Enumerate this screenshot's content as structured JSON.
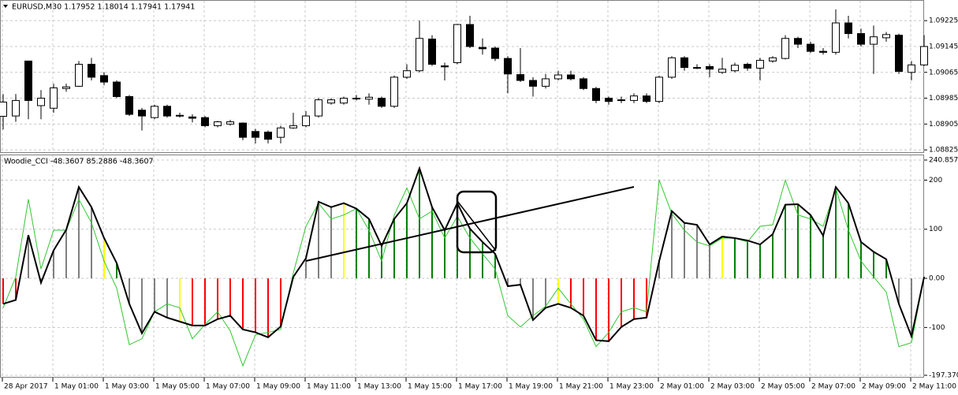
{
  "chart_data": [
    {
      "type": "candlestick",
      "title": "EURUSD,M30  1.17952 1.18014 1.17941 1.17941",
      "up_color": "#ffffff",
      "down_color": "#000000",
      "open": [
        1.08929,
        1.0893,
        1.091,
        1.08962,
        1.08954,
        1.09015,
        1.09022,
        1.0909,
        1.09055,
        1.09035,
        1.0899,
        1.08948,
        1.08925,
        1.0896,
        1.08932,
        1.08927,
        1.08925,
        1.089,
        1.08905,
        1.08908,
        1.08882,
        1.0888,
        1.08864,
        1.08893,
        1.089,
        1.0893,
        1.0897,
        1.0897,
        1.08983,
        1.08982,
        1.08985,
        1.0896,
        1.0905,
        1.0907,
        1.09168,
        1.09085,
        1.09095,
        1.09213,
        1.09142,
        1.0914,
        1.09108,
        1.09058,
        1.0904,
        1.09022,
        1.09045,
        1.09057,
        1.09045,
        1.09015,
        1.08985,
        1.0898,
        1.08978,
        1.08992,
        1.08975,
        1.0905,
        1.0911,
        1.0908,
        1.09083,
        1.09065,
        1.0907,
        1.0909,
        1.09078,
        1.091,
        1.09108,
        1.0917,
        1.09152,
        1.0913,
        1.09127,
        1.09218,
        1.09185,
        1.09152,
        1.09172,
        1.0918,
        1.09065,
        1.09088
      ],
      "high": [
        1.08998,
        1.08998,
        1.091,
        1.0901,
        1.0903,
        1.0903,
        1.091,
        1.0911,
        1.09065,
        1.0904,
        1.08995,
        1.08955,
        1.08965,
        1.08965,
        1.0894,
        1.08935,
        1.0893,
        1.08915,
        1.08918,
        1.0891,
        1.0889,
        1.08885,
        1.089,
        1.0894,
        1.08945,
        1.08985,
        1.08985,
        1.0899,
        1.08995,
        1.09,
        1.0899,
        1.09055,
        1.0909,
        1.09225,
        1.0918,
        1.09095,
        1.09215,
        1.0924,
        1.0917,
        1.09145,
        1.09115,
        1.0914,
        1.0905,
        1.0906,
        1.0907,
        1.0907,
        1.0905,
        1.0902,
        1.0899,
        1.0899,
        1.09,
        1.09,
        1.09055,
        1.09115,
        1.09115,
        1.0909,
        1.0909,
        1.0911,
        1.09095,
        1.09095,
        1.0911,
        1.09115,
        1.0918,
        1.09175,
        1.0916,
        1.0914,
        1.0926,
        1.0924,
        1.092,
        1.0921,
        1.0919,
        1.09185,
        1.091,
        1.0918
      ],
      "low": [
        1.08888,
        1.08912,
        1.0892,
        1.0892,
        1.0894,
        1.09005,
        1.0902,
        1.0904,
        1.09025,
        1.08985,
        1.0893,
        1.08885,
        1.0892,
        1.08925,
        1.08925,
        1.0891,
        1.08895,
        1.08895,
        1.089,
        1.08855,
        1.08845,
        1.08845,
        1.08845,
        1.0889,
        1.08895,
        1.08925,
        1.08965,
        1.08965,
        1.08978,
        1.08965,
        1.08955,
        1.08955,
        1.09045,
        1.09065,
        1.09085,
        1.0904,
        1.0909,
        1.0914,
        1.0912,
        1.091,
        1.09,
        1.09035,
        1.0899,
        1.09015,
        1.0904,
        1.0904,
        1.0901,
        1.0897,
        1.08965,
        1.0897,
        1.0897,
        1.0897,
        1.0897,
        1.09045,
        1.0907,
        1.09075,
        1.0905,
        1.0906,
        1.09065,
        1.0907,
        1.0904,
        1.09095,
        1.09105,
        1.0914,
        1.09125,
        1.0912,
        1.0912,
        1.0917,
        1.09145,
        1.0906,
        1.0916,
        1.0906,
        1.0904,
        1.09085
      ],
      "close": [
        1.08973,
        1.08978,
        1.08978,
        1.08985,
        1.09017,
        1.0902,
        1.0909,
        1.0905,
        1.09035,
        1.0899,
        1.08935,
        1.0893,
        1.0896,
        1.0893,
        1.0893,
        1.08923,
        1.089,
        1.08912,
        1.08912,
        1.08864,
        1.08864,
        1.08858,
        1.08893,
        1.089,
        1.0893,
        1.0898,
        1.0898,
        1.08985,
        1.08985,
        1.08988,
        1.0896,
        1.0905,
        1.0907,
        1.0917,
        1.0909,
        1.09082,
        1.09213,
        1.09145,
        1.09138,
        1.09108,
        1.0906,
        1.0904,
        1.09022,
        1.09045,
        1.09057,
        1.09045,
        1.09015,
        1.08978,
        1.08975,
        1.08978,
        1.08992,
        1.08975,
        1.0905,
        1.0911,
        1.0908,
        1.09078,
        1.09075,
        1.09075,
        1.09087,
        1.09078,
        1.09102,
        1.0911,
        1.0917,
        1.09152,
        1.0913,
        1.09127,
        1.09218,
        1.09185,
        1.09152,
        1.09175,
        1.09182,
        1.09068,
        1.09088,
        1.09145
      ],
      "ylim": [
        1.08818,
        1.09284
      ],
      "yticks": [
        1.09225,
        1.09145,
        1.09065,
        1.08985,
        1.08905,
        1.08825
      ],
      "grid": true
    },
    {
      "type": "woodie_cci",
      "title": "Woodie_CCI -48.3607 85.2886 -48.3607",
      "categories": [
        "28 Apr 2017",
        null,
        null,
        null,
        "1 May 01:00",
        null,
        null,
        null,
        "1 May 03:00",
        null,
        null,
        null,
        "1 May 05:00",
        null,
        null,
        null,
        "1 May 07:00",
        null,
        null,
        null,
        "1 May 09:00",
        null,
        null,
        null,
        "1 May 11:00",
        null,
        null,
        null,
        "1 May 13:00",
        null,
        null,
        null,
        "1 May 15:00",
        null,
        null,
        null,
        "1 May 17:00",
        null,
        null,
        null,
        "1 May 19:00",
        null,
        null,
        null,
        "1 May 21:00",
        null,
        null,
        null,
        "1 May 23:00",
        null,
        null,
        null,
        "2 May 01:00",
        null,
        null,
        null,
        "2 May 03:00",
        null,
        null,
        null,
        "2 May 05:00",
        null,
        null,
        null,
        "2 May 07:00",
        null,
        null,
        null,
        "2 May 09:00",
        null,
        null,
        null,
        "2 May 11:00",
        null
      ],
      "series": [
        {
          "color": "#000000",
          "values": [
            -52,
            -44,
            88,
            -9,
            57,
            99,
            186,
            145,
            82,
            31,
            -52,
            -112,
            -68,
            -80,
            -88,
            -96,
            -96,
            -83,
            -76,
            -104,
            -110,
            -120,
            -98,
            3,
            41,
            156,
            145,
            153,
            142,
            121,
            66,
            121,
            153,
            224,
            145,
            98,
            153,
            101,
            74,
            50,
            -16,
            -13,
            -85,
            -60,
            -52,
            -60,
            -76,
            -126,
            -128,
            -99,
            -83,
            -80,
            35,
            137,
            113,
            109,
            69,
            85,
            82,
            77,
            69,
            90,
            150,
            151,
            129,
            87,
            186,
            153,
            74,
            54,
            39,
            -52,
            -118,
            3
          ]
        },
        {
          "color": "#32c832",
          "values": [
            -60,
            3,
            161,
            19,
            98,
            98,
            161,
            113,
            35,
            -20,
            -135,
            -123,
            -68,
            -52,
            -60,
            -123,
            -94,
            -68,
            -107,
            -178,
            -115,
            -110,
            -104,
            11,
            106,
            153,
            121,
            129,
            142,
            98,
            35,
            129,
            184,
            121,
            137,
            82,
            126,
            82,
            50,
            19,
            -76,
            -99,
            -76,
            -57,
            -20,
            -52,
            -83,
            -139,
            -110,
            -68,
            -60,
            -68,
            200,
            132,
            98,
            74,
            66,
            82,
            82,
            74,
            106,
            109,
            200,
            129,
            121,
            106,
            184,
            98,
            35,
            3,
            -28,
            -139,
            -131,
            3
          ]
        }
      ],
      "bar_colors": [
        "#ff0000",
        "#ff0000",
        "#808080",
        "#808080",
        "#808080",
        "#808080",
        "#808080",
        "#808080",
        "#ffff00",
        "#008000",
        "#808080",
        "#808080",
        "#808080",
        "#808080",
        "#ffff00",
        "#ff0000",
        "#ff0000",
        "#ff0000",
        "#ff0000",
        "#ff0000",
        "#ff0000",
        "#ff0000",
        "#ff0000",
        "#808080",
        "#808080",
        "#808080",
        "#808080",
        "#ffff00",
        "#008000",
        "#008000",
        "#008000",
        "#008000",
        "#008000",
        "#008000",
        "#008000",
        "#008000",
        "#008000",
        "#008000",
        "#008000",
        "#008000",
        "#808080",
        "#808080",
        "#808080",
        "#808080",
        "#ffff00",
        "#ff0000",
        "#ff0000",
        "#ff0000",
        "#ff0000",
        "#ff0000",
        "#ff0000",
        "#ff0000",
        "#808080",
        "#808080",
        "#808080",
        "#808080",
        "#808080",
        "#ffff00",
        "#008000",
        "#008000",
        "#008000",
        "#008000",
        "#008000",
        "#008000",
        "#008000",
        "#008000",
        "#008000",
        "#008000",
        "#008000",
        "#008000",
        "#008000",
        "#808080",
        "#808080",
        "#808080"
      ],
      "ylim": [
        -197.3704,
        240.857
      ],
      "yticks": [
        240.857,
        200,
        100,
        {
          "value": 0,
          "label": "0.00"
        },
        -100,
        -197.3704
      ],
      "grid": true
    }
  ]
}
